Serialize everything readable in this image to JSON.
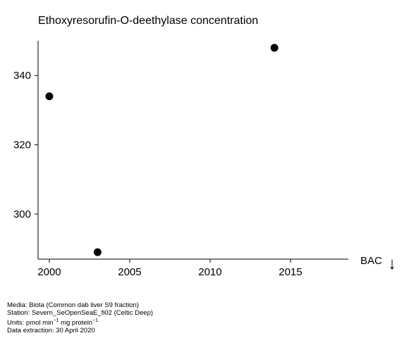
{
  "chart_data": {
    "type": "scatter",
    "title": "Ethoxyresorufin-O-deethylase concentration",
    "xlabel": "",
    "ylabel": "",
    "x": [
      2000,
      2003,
      2014
    ],
    "y": [
      334,
      289,
      348
    ],
    "xlim": [
      1999.3,
      2018.6
    ],
    "ylim": [
      287,
      350
    ],
    "x_ticks": [
      2000,
      2005,
      2010,
      2015
    ],
    "y_ticks": [
      300,
      320,
      340
    ],
    "annotation": "BAC",
    "annotation_symbol": "↓",
    "grid": false,
    "marker_color": "#000000"
  },
  "meta": {
    "media": "Media: Biota (Common dab liver S9 fraction)",
    "station": "Station: Severn_SeOpenSeaE_fi02 (Celtic Deep)",
    "units_prefix": "Units:  pmol min",
    "units_exp1": "−1",
    "units_mid": " mg protein",
    "units_exp2": "−1",
    "extraction": "Data extraction: 30 April 2020"
  }
}
